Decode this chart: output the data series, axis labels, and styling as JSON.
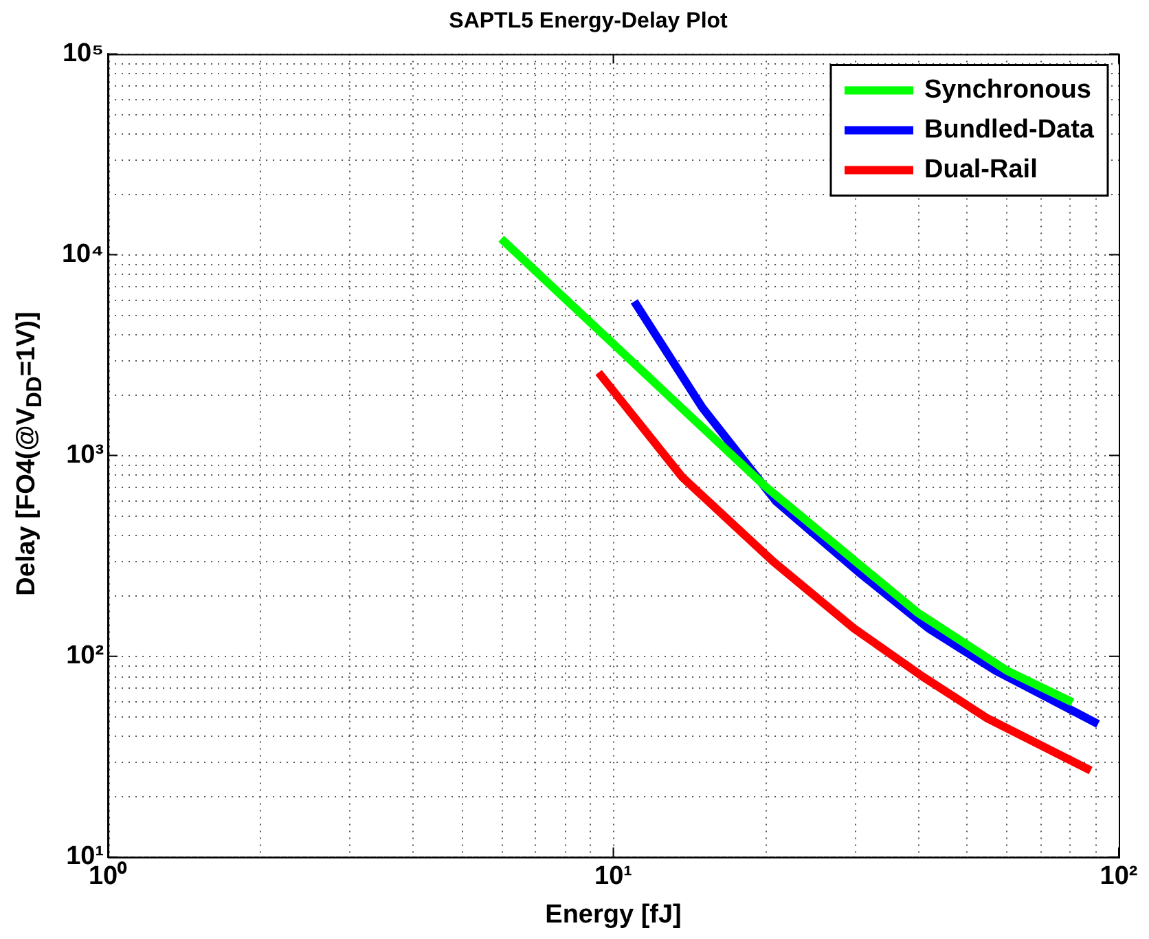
{
  "chart_data": {
    "type": "line",
    "title": "SAPTL5 Energy-Delay Plot",
    "xlabel": "Energy [fJ]",
    "ylabel": "Delay [FO4(@V$_{DD}$=1V)]",
    "log": "xy",
    "xlim": [
      1,
      100
    ],
    "ylim": [
      10,
      100000
    ],
    "xticks": [
      {
        "value": 1,
        "label": "10⁰"
      },
      {
        "value": 10,
        "label": "10¹"
      },
      {
        "value": 100,
        "label": "10²"
      }
    ],
    "yticks": [
      {
        "value": 10,
        "label": "10¹"
      },
      {
        "value": 100,
        "label": "10²"
      },
      {
        "value": 1000,
        "label": "10³"
      },
      {
        "value": 10000,
        "label": "10⁴"
      },
      {
        "value": 100000,
        "label": "10⁵"
      }
    ],
    "grid": true,
    "legend": "top right",
    "line_style": "solid",
    "series": [
      {
        "name": "Synchronous",
        "color": "#00ff00",
        "x": [
          6,
          20,
          30,
          40,
          60,
          81
        ],
        "values": [
          12000,
          700,
          300,
          165,
          85,
          59
        ]
      },
      {
        "name": "Bundled-Data",
        "color": "#0000ff",
        "x": [
          11,
          15,
          21,
          30.6,
          42,
          57,
          91
        ],
        "values": [
          5850,
          1730,
          590,
          262,
          138,
          85,
          46
        ]
      },
      {
        "name": "Dual-Rail",
        "color": "#ff0000",
        "x": [
          9.35,
          13.7,
          20.7,
          30,
          41,
          55,
          88
        ],
        "values": [
          2590,
          778,
          297,
          137,
          79,
          49,
          27
        ]
      }
    ]
  }
}
